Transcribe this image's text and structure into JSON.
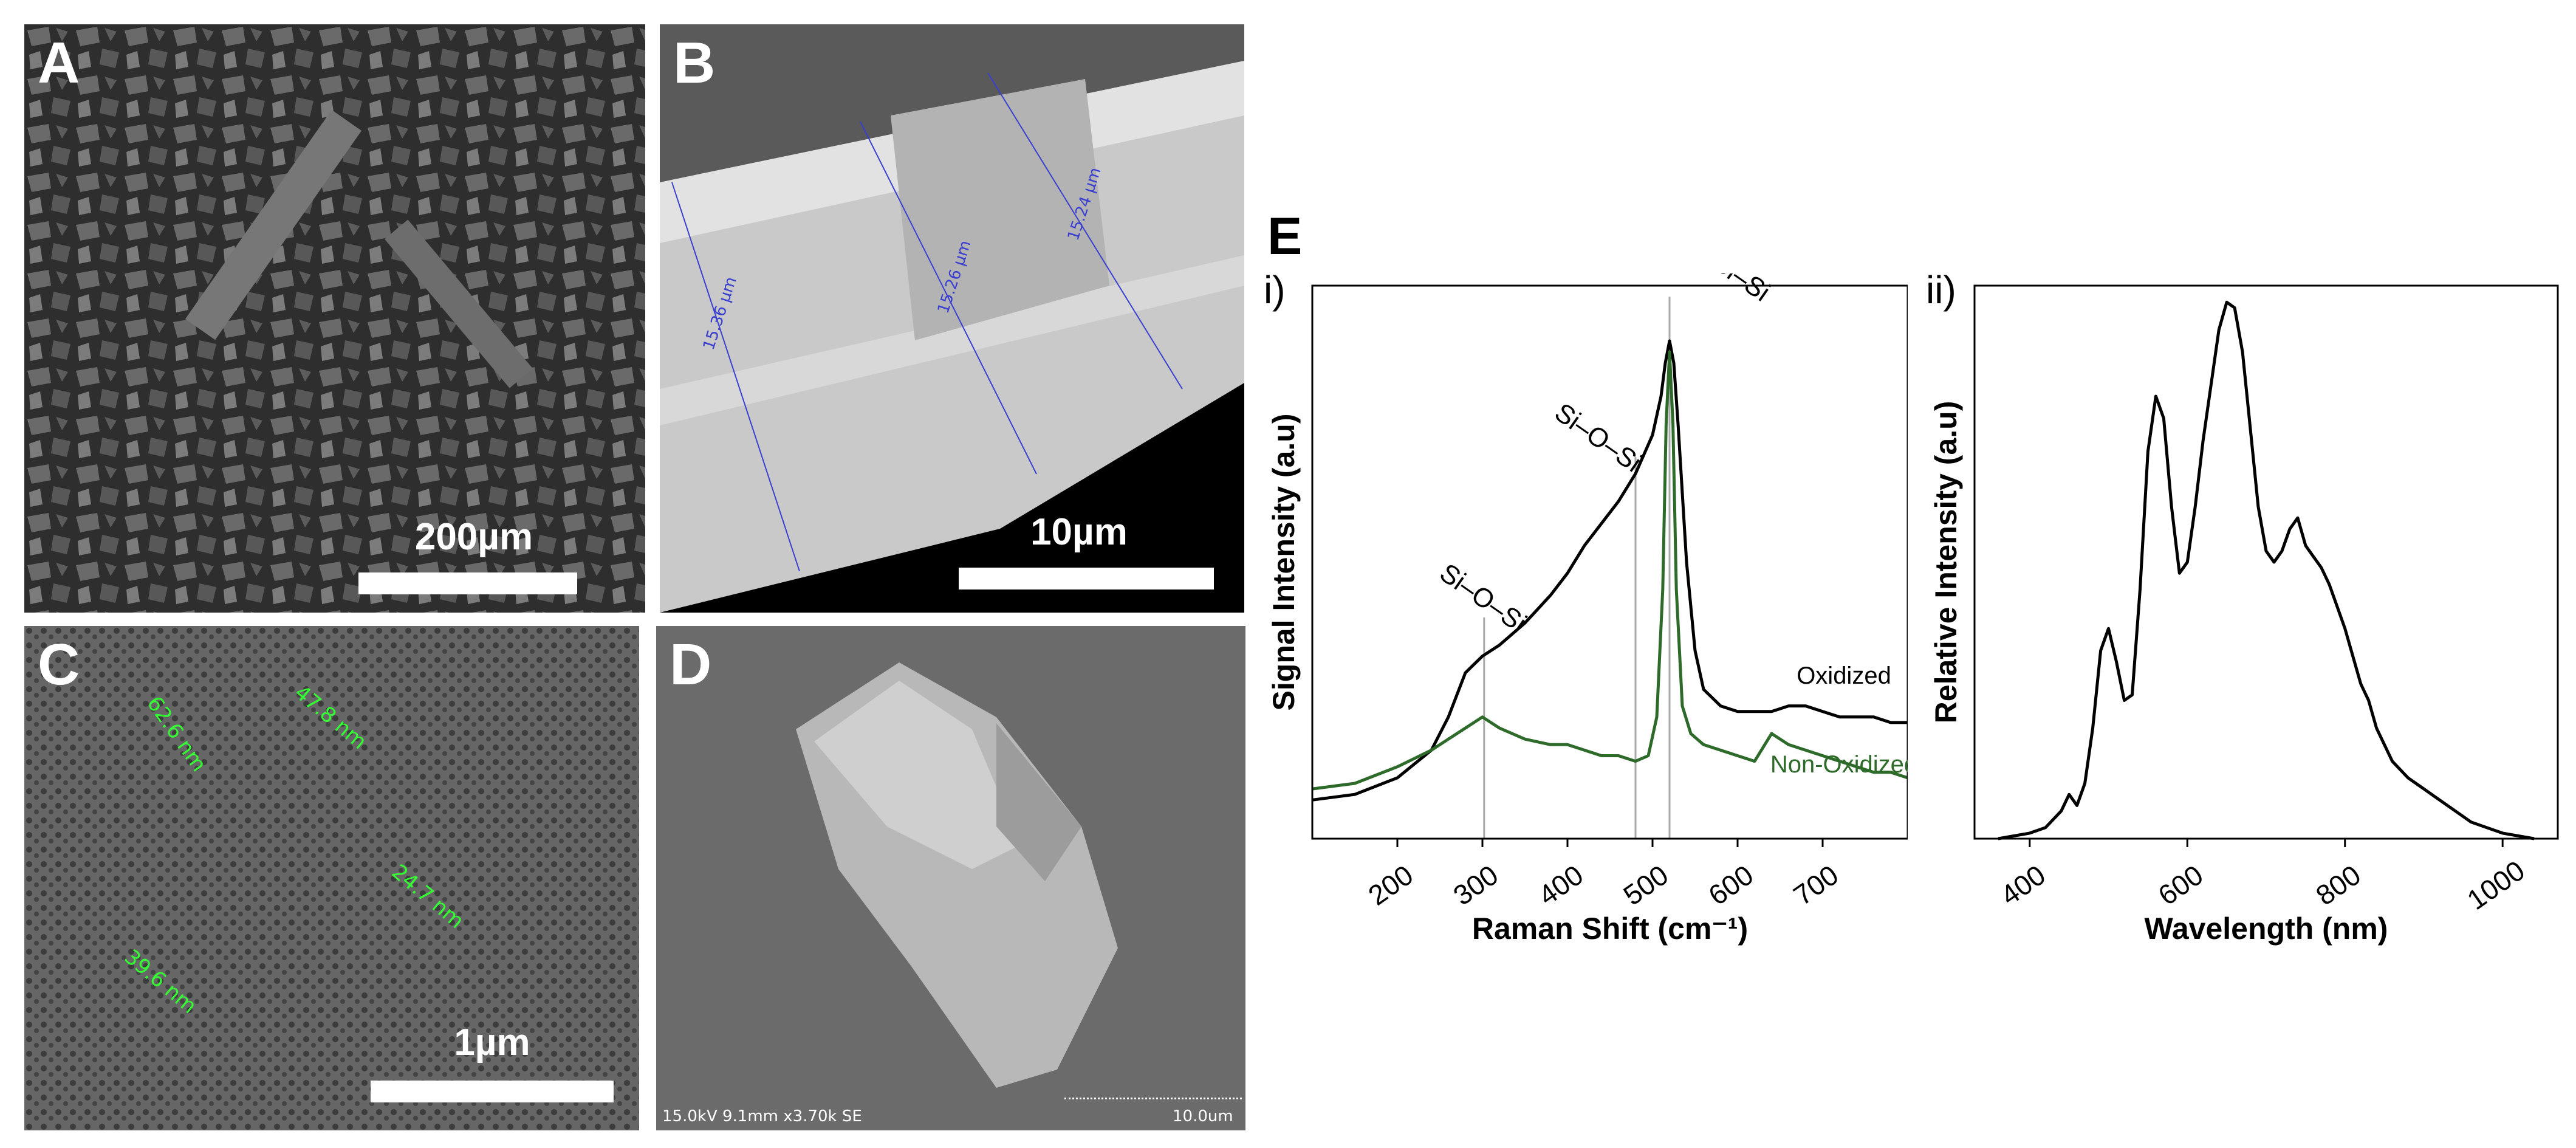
{
  "panels": {
    "A": {
      "letter": "A",
      "scale": "200µm"
    },
    "B": {
      "letter": "B",
      "scale": "10µm",
      "measurements": [
        "15.36 µm",
        "15.26 µm",
        "15.24 µm"
      ]
    },
    "C": {
      "letter": "C",
      "scale": "1µm",
      "measurements": [
        "62.6 nm",
        "47.8 nm",
        "24.7 nm",
        "39.6 nm"
      ]
    },
    "D": {
      "letter": "D",
      "info": "15.0kV 9.1mm x3.70k SE",
      "scale_text": "10.0um"
    },
    "E": {
      "letter": "E"
    }
  },
  "chart_data": [
    {
      "type": "line",
      "panel_label": "i)",
      "xlabel": "Raman Shift (cm⁻¹)",
      "ylabel": "Signal Intensity (a.u)",
      "xlim": [
        100,
        800
      ],
      "xticks": [
        200,
        300,
        400,
        500,
        600,
        700
      ],
      "ylim": [
        0,
        1
      ],
      "annotations": [
        {
          "text": "Si–O–Si",
          "x": 302
        },
        {
          "text": "Si–O–Si",
          "x": 480
        },
        {
          "text": "Si–Si",
          "x": 520
        }
      ],
      "series": [
        {
          "name": "Oxidized",
          "color": "#000000",
          "x": [
            100,
            150,
            200,
            240,
            260,
            280,
            300,
            320,
            350,
            380,
            400,
            420,
            440,
            460,
            480,
            500,
            510,
            515,
            520,
            525,
            530,
            540,
            550,
            560,
            580,
            600,
            620,
            640,
            660,
            680,
            700,
            720,
            740,
            760,
            780,
            800
          ],
          "y": [
            0.07,
            0.08,
            0.11,
            0.16,
            0.22,
            0.3,
            0.33,
            0.35,
            0.39,
            0.44,
            0.48,
            0.53,
            0.57,
            0.61,
            0.66,
            0.73,
            0.8,
            0.86,
            0.9,
            0.86,
            0.75,
            0.5,
            0.34,
            0.27,
            0.24,
            0.23,
            0.23,
            0.23,
            0.24,
            0.24,
            0.23,
            0.22,
            0.22,
            0.22,
            0.21,
            0.21
          ]
        },
        {
          "name": "Non-Oxidized",
          "color": "#2e6b2a",
          "x": [
            100,
            150,
            200,
            240,
            260,
            280,
            300,
            320,
            350,
            380,
            400,
            420,
            440,
            460,
            480,
            495,
            505,
            512,
            516,
            520,
            524,
            528,
            535,
            545,
            560,
            580,
            600,
            620,
            640,
            660,
            680,
            700,
            720,
            740,
            760,
            780,
            800
          ],
          "y": [
            0.09,
            0.1,
            0.13,
            0.16,
            0.18,
            0.2,
            0.22,
            0.2,
            0.18,
            0.17,
            0.17,
            0.16,
            0.15,
            0.15,
            0.14,
            0.15,
            0.22,
            0.45,
            0.75,
            0.88,
            0.75,
            0.45,
            0.24,
            0.19,
            0.17,
            0.16,
            0.15,
            0.14,
            0.19,
            0.17,
            0.16,
            0.15,
            0.14,
            0.13,
            0.12,
            0.12,
            0.11
          ]
        }
      ]
    },
    {
      "type": "line",
      "panel_label": "ii)",
      "xlabel": "Wavelength (nm)",
      "ylabel": "Relative Intensity (a.u)",
      "xlim": [
        330,
        1070
      ],
      "xticks": [
        400,
        600,
        800,
        1000
      ],
      "ylim": [
        0,
        1
      ],
      "series": [
        {
          "name": "",
          "color": "#000000",
          "x": [
            360,
            400,
            420,
            440,
            450,
            460,
            470,
            480,
            490,
            500,
            510,
            520,
            530,
            540,
            550,
            560,
            570,
            580,
            590,
            600,
            610,
            620,
            630,
            640,
            650,
            660,
            670,
            680,
            690,
            700,
            710,
            720,
            730,
            740,
            750,
            760,
            770,
            780,
            790,
            800,
            810,
            820,
            830,
            840,
            860,
            880,
            900,
            920,
            940,
            960,
            980,
            1000,
            1040
          ],
          "y": [
            0.0,
            0.01,
            0.02,
            0.05,
            0.08,
            0.06,
            0.1,
            0.2,
            0.34,
            0.38,
            0.32,
            0.25,
            0.26,
            0.45,
            0.7,
            0.8,
            0.76,
            0.6,
            0.48,
            0.5,
            0.6,
            0.72,
            0.82,
            0.92,
            0.97,
            0.96,
            0.88,
            0.74,
            0.6,
            0.52,
            0.5,
            0.52,
            0.56,
            0.58,
            0.53,
            0.51,
            0.49,
            0.46,
            0.42,
            0.38,
            0.33,
            0.28,
            0.25,
            0.2,
            0.14,
            0.11,
            0.09,
            0.07,
            0.05,
            0.03,
            0.02,
            0.01,
            0.0
          ]
        }
      ]
    }
  ]
}
